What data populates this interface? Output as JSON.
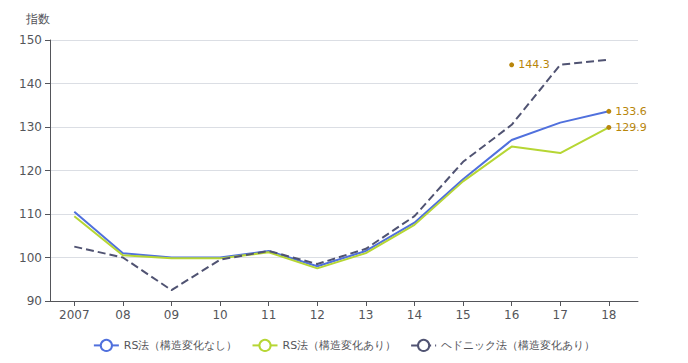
{
  "chart_data": {
    "type": "line",
    "x": [
      2007,
      2008,
      2009,
      2010,
      2011,
      2012,
      2013,
      2014,
      2015,
      2016,
      2017,
      2018
    ],
    "series": [
      {
        "name": "RS法（構造変化なし）",
        "line_style": "solid",
        "values": [
          110.5,
          101.0,
          100.0,
          100.0,
          101.5,
          98.0,
          101.5,
          108.0,
          118.0,
          127.0,
          131.0,
          133.6
        ]
      },
      {
        "name": "RS法（構造変化あり）",
        "line_style": "solid",
        "values": [
          109.5,
          100.5,
          99.8,
          99.8,
          101.2,
          97.5,
          101.0,
          107.5,
          117.5,
          125.5,
          124.0,
          129.9
        ]
      },
      {
        "name": "ヘドニック法（構造変化あり）",
        "line_style": "dashed",
        "values": [
          102.5,
          100.0,
          92.5,
          99.5,
          101.5,
          98.5,
          102.0,
          109.5,
          122.0,
          130.5,
          144.3,
          145.5
        ]
      }
    ],
    "ylabel": "指数",
    "xlim": [
      2006.5,
      2018.6
    ],
    "xticks": [
      2007,
      {
        "value": 2008,
        "label": "08"
      },
      {
        "value": 2009,
        "label": "09"
      },
      {
        "value": 2010,
        "label": "10"
      },
      {
        "value": 2011,
        "label": "11"
      },
      {
        "value": 2012,
        "label": "12"
      },
      {
        "value": 2013,
        "label": "13"
      },
      {
        "value": 2014,
        "label": "14"
      },
      {
        "value": 2015,
        "label": "15"
      },
      {
        "value": 2016,
        "label": "16"
      },
      {
        "value": 2017,
        "label": "17"
      },
      {
        "value": 2018,
        "label": "18"
      }
    ],
    "ylim": [
      90,
      150
    ],
    "yticks": [
      90,
      100,
      110,
      120,
      130,
      140,
      150
    ],
    "annotations": [
      {
        "text": "144.3",
        "x": 2016,
        "y": 144.3,
        "color": "#b8860b"
      },
      {
        "text": "133.6",
        "x": 2018,
        "y": 133.6,
        "color": "#b8860b"
      },
      {
        "text": "129.9",
        "x": 2018,
        "y": 129.9,
        "color": "#b8860b"
      }
    ],
    "grid": true,
    "legend": "bottom"
  }
}
